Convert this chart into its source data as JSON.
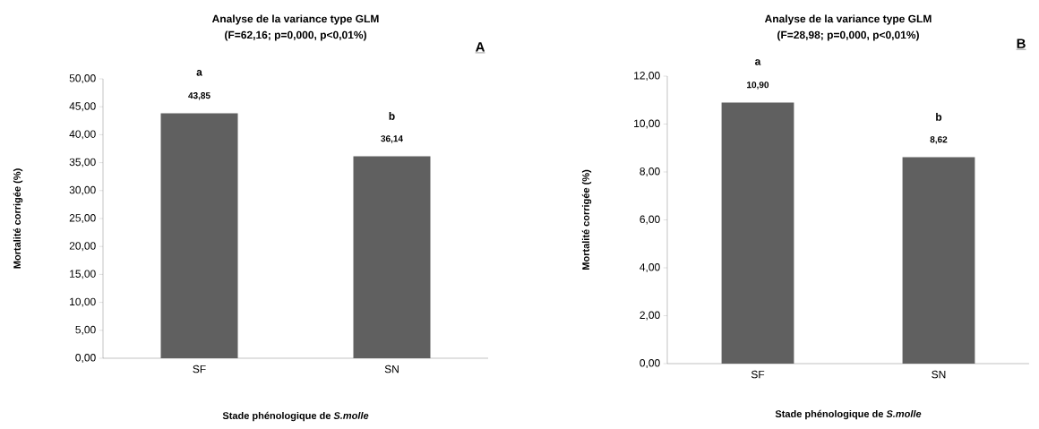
{
  "chart_data": [
    {
      "type": "bar",
      "title": "Analyse de la variance type GLM",
      "subtitle": "(F=62,16; p=0,000,  p<0,01%)",
      "xlabel": "Stade phénologique de *S.molle*",
      "ylabel": "Mortalité corrigée (%)",
      "categories": [
        "SF",
        "SN"
      ],
      "values": [
        43.85,
        36.14
      ],
      "value_labels": [
        "43,85",
        "36,14"
      ],
      "color": "#606060",
      "ylim": [
        0,
        50
      ],
      "yticks": [
        {
          "value": 0,
          "label": "0,00"
        },
        {
          "value": 5,
          "label": "5,00"
        },
        {
          "value": 10,
          "label": "10,00"
        },
        {
          "value": 15,
          "label": "15,00"
        },
        {
          "value": 20,
          "label": "20,00"
        },
        {
          "value": 25,
          "label": "25,00"
        },
        {
          "value": 30,
          "label": "30,00"
        },
        {
          "value": 35,
          "label": "35,00"
        },
        {
          "value": 40,
          "label": "40,00"
        },
        {
          "value": 45,
          "label": "45,00"
        },
        {
          "value": 50,
          "label": "50,00"
        }
      ],
      "annotations": [
        "A",
        "a",
        "b"
      ]
    },
    {
      "type": "bar",
      "title": "Analyse de la variance type GLM",
      "subtitle": "(F=28,98; p=0,000, p<0,01%)",
      "xlabel": "Stade phénologique de *S.molle*",
      "ylabel": "Mortalité corrigée (%)",
      "categories": [
        "SF",
        "SN"
      ],
      "values": [
        10.9,
        8.62
      ],
      "value_labels": [
        "10,90",
        "8,62"
      ],
      "color": "#606060",
      "ylim": [
        0,
        12
      ],
      "yticks": [
        {
          "value": 0,
          "label": "0,00"
        },
        {
          "value": 2,
          "label": "2,00"
        },
        {
          "value": 4,
          "label": "4,00"
        },
        {
          "value": 6,
          "label": "6,00"
        },
        {
          "value": 8,
          "label": "8,00"
        },
        {
          "value": 10,
          "label": "10,00"
        },
        {
          "value": 12,
          "label": "12,00"
        }
      ],
      "annotations": [
        "B",
        "a",
        "b"
      ]
    }
  ]
}
